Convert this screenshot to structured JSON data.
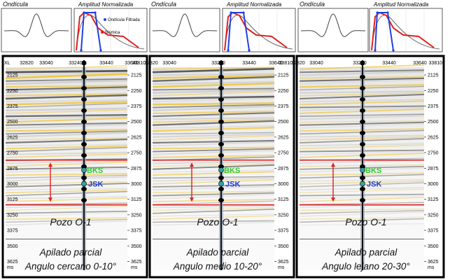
{
  "strip": {
    "wavelet_label": "Ondícula",
    "amplitude_label": "Amplitud Normalizada",
    "legend_filtered": "Ondícula Filtrada",
    "legend_seismic": "Sísmica"
  },
  "xl_axis": {
    "prefix": "XL",
    "first_panel_labels": [
      "32820",
      "33040",
      "33240",
      "33440",
      "33640",
      "33810"
    ],
    "other_panel_labels": [
      "32820",
      "33040",
      "33240",
      "33440",
      "33640",
      "33810"
    ]
  },
  "time_axis": {
    "unit": "ms",
    "ticks": [
      "2125",
      "2250",
      "2375",
      "2500",
      "2625",
      "2750",
      "2875",
      "3000",
      "3125",
      "3250",
      "3375",
      "3500",
      "3625"
    ]
  },
  "markers": {
    "top": "BKS",
    "base": "JSK"
  },
  "panels": [
    {
      "well": "Pozo O-1",
      "stack": "Apilado parcial",
      "angle": "Angulo cercano 0-10°"
    },
    {
      "well": "Pozo O-1",
      "stack": "Apilado parcial",
      "angle": "Angulo medio 10-20°"
    },
    {
      "well": "Pozo O-1",
      "stack": "Apilado parcial",
      "angle": "Angulo lejano 20-30°"
    }
  ],
  "colors": {
    "horizon_red": "#e02020",
    "marker_top": "#32c832",
    "marker_base": "#1e3cdc",
    "filtered_wavelet": "#2040e0",
    "seismic_spectrum": "#e02020",
    "frame": "#000000"
  }
}
